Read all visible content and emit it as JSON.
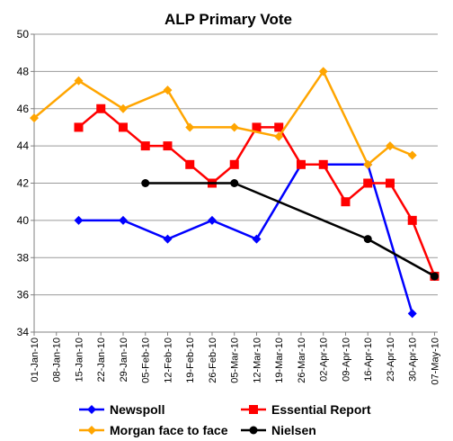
{
  "chart_data": {
    "type": "line",
    "title": "ALP Primary Vote",
    "xlabel": "",
    "ylabel": "",
    "ylim": [
      34,
      50
    ],
    "y_ticks": [
      34,
      36,
      38,
      40,
      42,
      44,
      46,
      48,
      50
    ],
    "x_ticks": [
      "01-Jan-10",
      "08-Jan-10",
      "15-Jan-10",
      "22-Jan-10",
      "29-Jan-10",
      "05-Feb-10",
      "12-Feb-10",
      "19-Feb-10",
      "26-Feb-10",
      "05-Mar-10",
      "12-Mar-10",
      "19-Mar-10",
      "26-Mar-10",
      "02-Apr-10",
      "09-Apr-10",
      "16-Apr-10",
      "23-Apr-10",
      "30-Apr-10",
      "07-May-10"
    ],
    "x_range": [
      "2010-01-01",
      "2010-05-08"
    ],
    "grid": "horizontal",
    "legend": "bottom",
    "series": [
      {
        "name": "Newspoll",
        "color": "#0000FF",
        "marker": "diamond",
        "points": [
          {
            "x": "2010-01-15",
            "y": 40
          },
          {
            "x": "2010-01-29",
            "y": 40
          },
          {
            "x": "2010-02-12",
            "y": 39
          },
          {
            "x": "2010-02-26",
            "y": 40
          },
          {
            "x": "2010-03-12",
            "y": 39
          },
          {
            "x": "2010-03-26",
            "y": 43
          },
          {
            "x": "2010-04-16",
            "y": 43
          },
          {
            "x": "2010-04-30",
            "y": 35
          }
        ]
      },
      {
        "name": "Essential Report",
        "color": "#FF0000",
        "marker": "square",
        "points": [
          {
            "x": "2010-01-15",
            "y": 45
          },
          {
            "x": "2010-01-22",
            "y": 46
          },
          {
            "x": "2010-01-29",
            "y": 45
          },
          {
            "x": "2010-02-05",
            "y": 44
          },
          {
            "x": "2010-02-12",
            "y": 44
          },
          {
            "x": "2010-02-19",
            "y": 43
          },
          {
            "x": "2010-02-26",
            "y": 42
          },
          {
            "x": "2010-03-05",
            "y": 43
          },
          {
            "x": "2010-03-12",
            "y": 45
          },
          {
            "x": "2010-03-19",
            "y": 45
          },
          {
            "x": "2010-03-26",
            "y": 43
          },
          {
            "x": "2010-04-02",
            "y": 43
          },
          {
            "x": "2010-04-09",
            "y": 41
          },
          {
            "x": "2010-04-16",
            "y": 42
          },
          {
            "x": "2010-04-23",
            "y": 42
          },
          {
            "x": "2010-04-30",
            "y": 40
          },
          {
            "x": "2010-05-07",
            "y": 37
          }
        ]
      },
      {
        "name": "Morgan face to face",
        "color": "#FFA500",
        "marker": "diamond",
        "points": [
          {
            "x": "2010-01-01",
            "y": 45.5
          },
          {
            "x": "2010-01-15",
            "y": 47.5
          },
          {
            "x": "2010-01-29",
            "y": 46
          },
          {
            "x": "2010-02-12",
            "y": 47
          },
          {
            "x": "2010-02-19",
            "y": 45
          },
          {
            "x": "2010-03-05",
            "y": 45
          },
          {
            "x": "2010-03-19",
            "y": 44.5
          },
          {
            "x": "2010-04-02",
            "y": 48
          },
          {
            "x": "2010-04-16",
            "y": 43
          },
          {
            "x": "2010-04-23",
            "y": 44
          },
          {
            "x": "2010-04-30",
            "y": 43.5
          }
        ]
      },
      {
        "name": "Nielsen",
        "color": "#000000",
        "marker": "circle",
        "points": [
          {
            "x": "2010-02-05",
            "y": 42
          },
          {
            "x": "2010-03-05",
            "y": 42
          },
          {
            "x": "2010-04-16",
            "y": 39
          },
          {
            "x": "2010-05-07",
            "y": 37
          }
        ]
      }
    ]
  }
}
